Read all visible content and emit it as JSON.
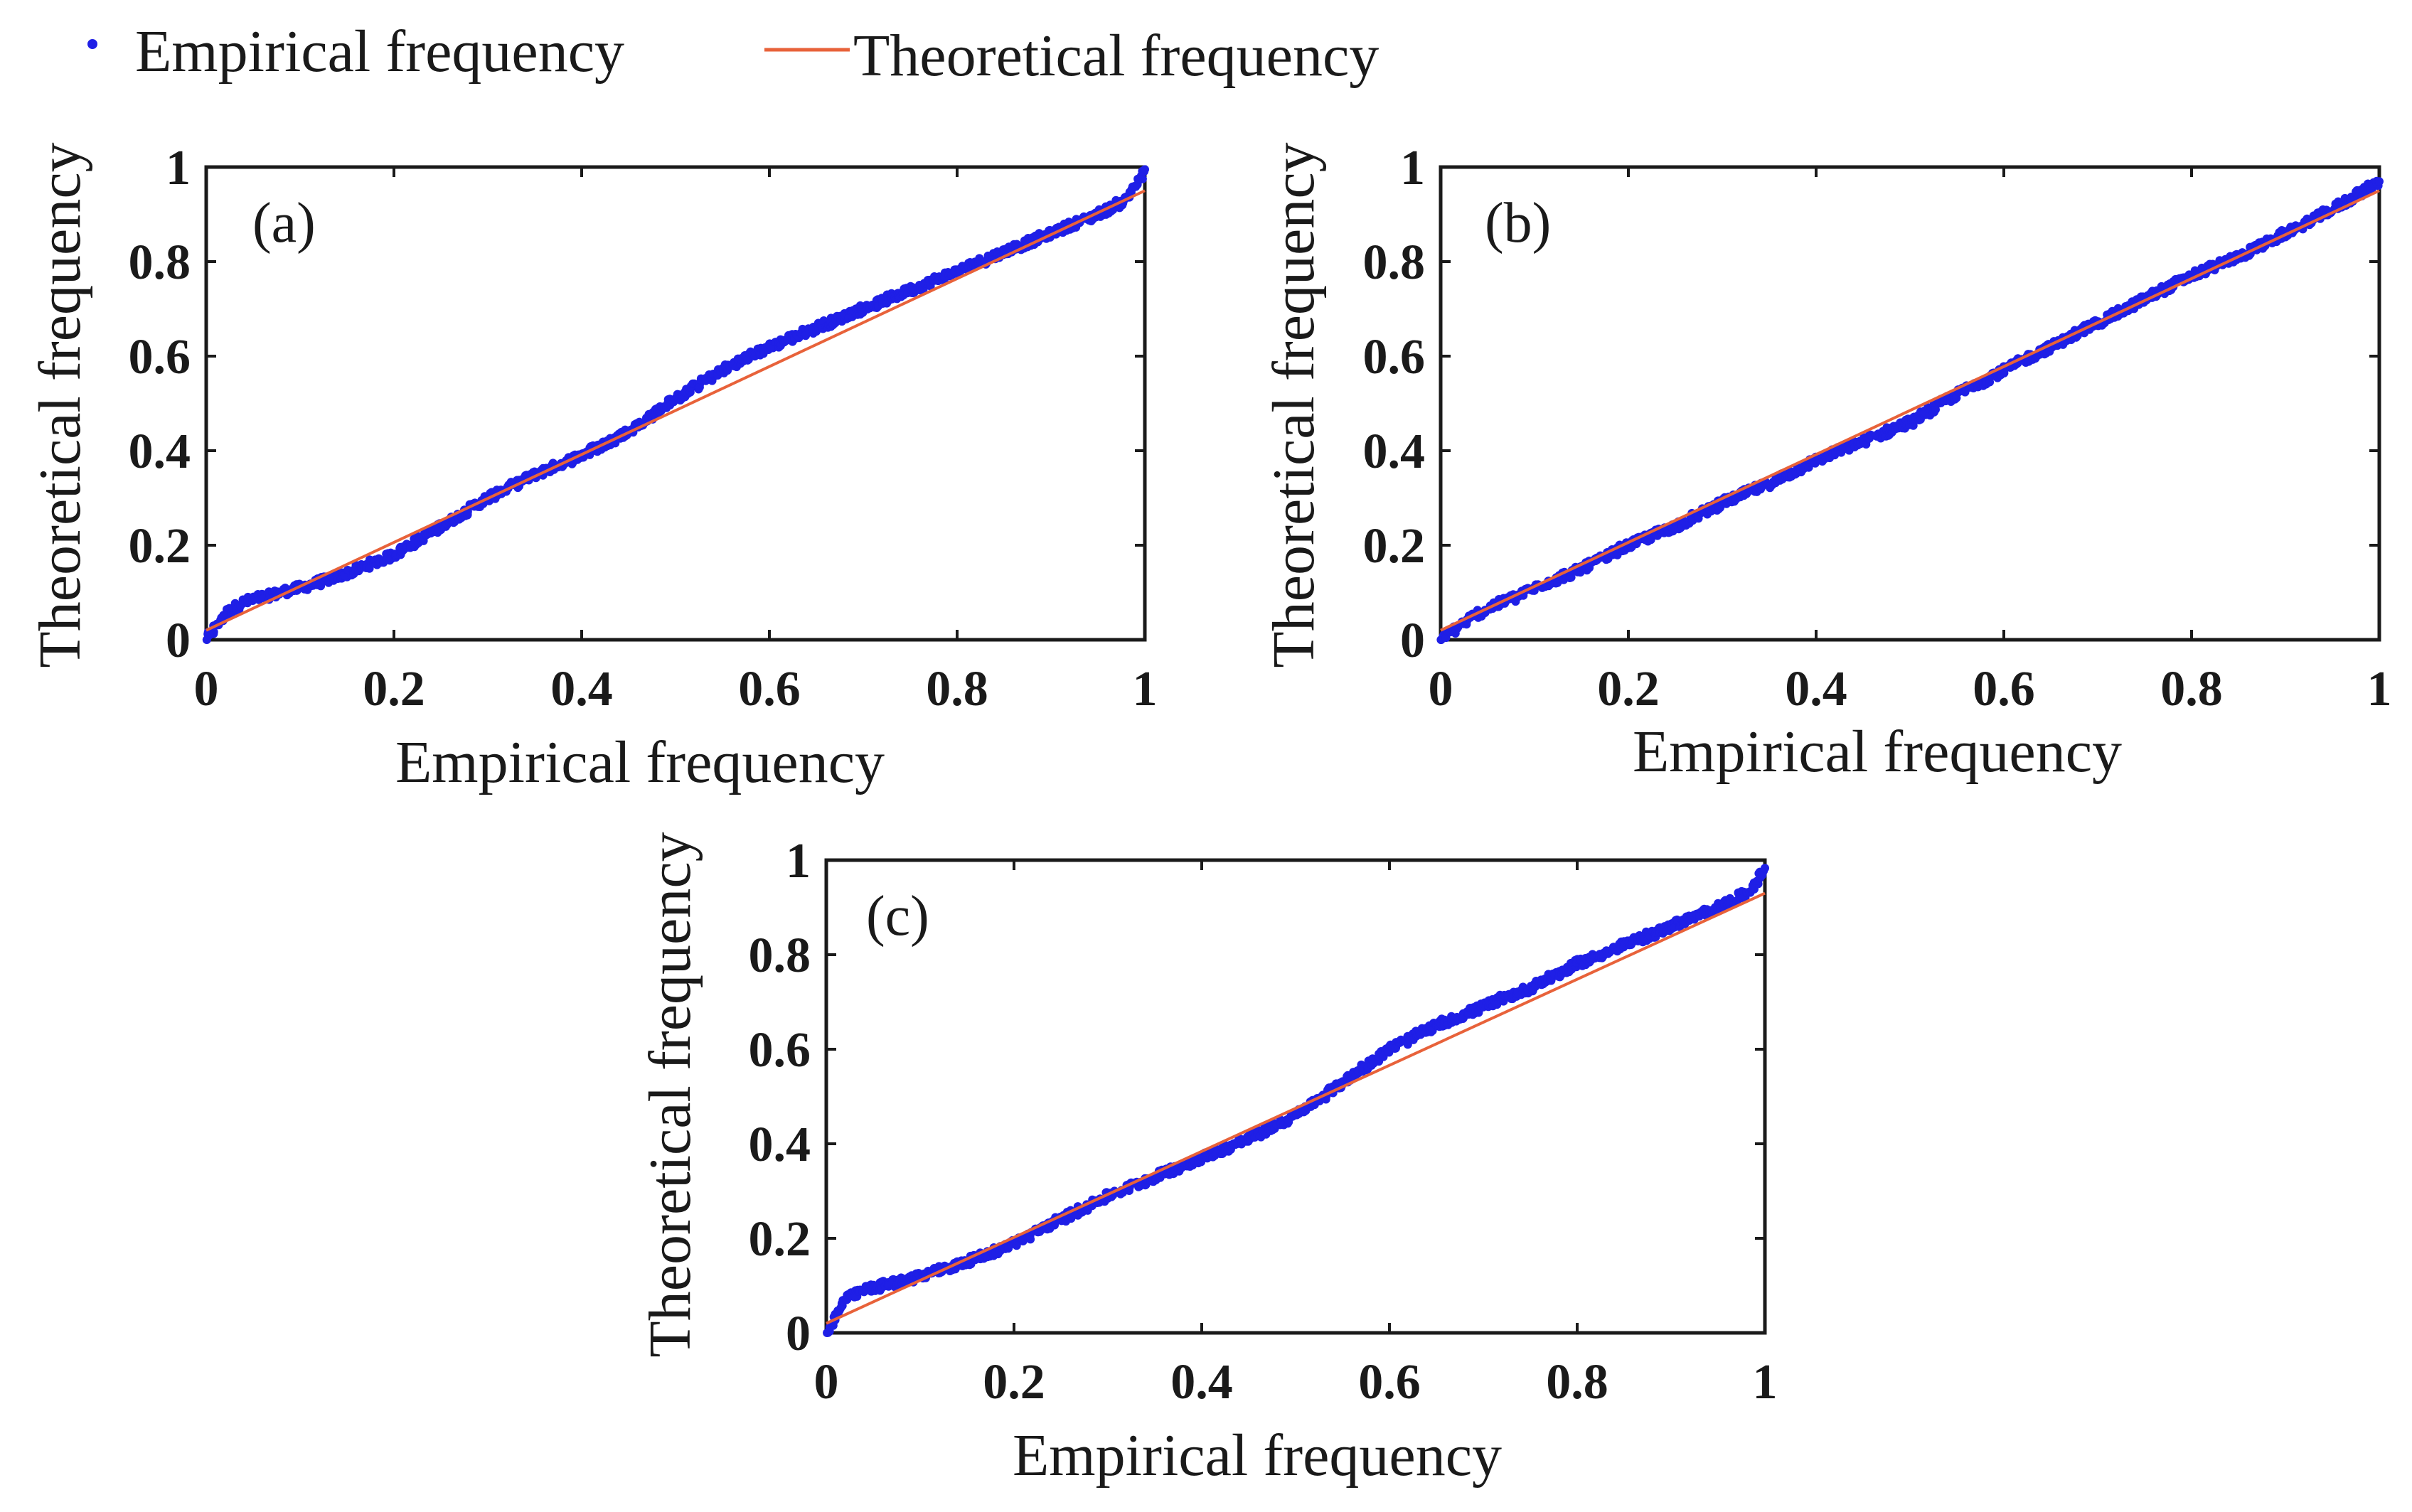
{
  "legend": {
    "items": [
      {
        "label": "Empirical frequency",
        "kind": "marker",
        "color": "#1f1fe6"
      },
      {
        "label": "Theoretical frequency",
        "kind": "line",
        "color": "#e8623a"
      }
    ]
  },
  "colors": {
    "scatter": "#1f1fe6",
    "fit_line": "#e8623a",
    "axis": "#1a1a1a"
  },
  "chart_data": [
    {
      "type": "scatter",
      "panel_label": "(a)",
      "xlabel": "Empirical frequency",
      "ylabel": "Theoretical frequency",
      "xlim": [
        0,
        1
      ],
      "ylim": [
        0,
        1
      ],
      "xticks": [
        "0",
        "0.2",
        "0.4",
        "0.6",
        "0.8",
        "1"
      ],
      "yticks": [
        "0",
        "0.2",
        "0.4",
        "0.6",
        "0.8",
        "1"
      ],
      "series": [
        {
          "name": "Empirical frequency",
          "x": [
            0,
            0.02,
            0.04,
            0.06,
            0.08,
            0.1,
            0.15,
            0.2,
            0.25,
            0.3,
            0.35,
            0.4,
            0.45,
            0.5,
            0.55,
            0.6,
            0.65,
            0.7,
            0.75,
            0.8,
            0.85,
            0.9,
            0.95,
            0.98,
            1.0
          ],
          "y": [
            0.0,
            0.055,
            0.08,
            0.09,
            0.1,
            0.11,
            0.14,
            0.18,
            0.24,
            0.3,
            0.35,
            0.39,
            0.44,
            0.51,
            0.57,
            0.62,
            0.66,
            0.7,
            0.74,
            0.78,
            0.82,
            0.86,
            0.9,
            0.93,
            0.99
          ]
        },
        {
          "name": "Theoretical frequency",
          "x": [
            0,
            1
          ],
          "y": [
            0.02,
            0.95
          ]
        }
      ]
    },
    {
      "type": "scatter",
      "panel_label": "(b)",
      "xlabel": "Empirical frequency",
      "ylabel": "Theoretical frequency",
      "xlim": [
        0,
        1
      ],
      "ylim": [
        0,
        1
      ],
      "xticks": [
        "0",
        "0.2",
        "0.4",
        "0.6",
        "0.8",
        "1"
      ],
      "yticks": [
        "0",
        "0.2",
        "0.4",
        "0.6",
        "0.8",
        "1"
      ],
      "series": [
        {
          "name": "Empirical frequency",
          "x": [
            0,
            0.02,
            0.04,
            0.06,
            0.08,
            0.1,
            0.15,
            0.2,
            0.25,
            0.3,
            0.35,
            0.4,
            0.45,
            0.5,
            0.55,
            0.6,
            0.65,
            0.7,
            0.75,
            0.8,
            0.85,
            0.9,
            0.95,
            1.0
          ],
          "y": [
            0.0,
            0.03,
            0.055,
            0.075,
            0.09,
            0.11,
            0.15,
            0.2,
            0.24,
            0.29,
            0.33,
            0.38,
            0.42,
            0.46,
            0.52,
            0.57,
            0.62,
            0.67,
            0.72,
            0.77,
            0.81,
            0.86,
            0.91,
            0.97
          ]
        },
        {
          "name": "Theoretical frequency",
          "x": [
            0,
            1
          ],
          "y": [
            0.02,
            0.95
          ]
        }
      ]
    },
    {
      "type": "scatter",
      "panel_label": "(c)",
      "xlabel": "Empirical frequency",
      "ylabel": "Theoretical frequency",
      "xlim": [
        0,
        1
      ],
      "ylim": [
        0,
        1
      ],
      "xticks": [
        "0",
        "0.2",
        "0.4",
        "0.6",
        "0.8",
        "1"
      ],
      "yticks": [
        "0",
        "0.2",
        "0.4",
        "0.6",
        "0.8",
        "1"
      ],
      "series": [
        {
          "name": "Empirical frequency",
          "x": [
            0,
            0.02,
            0.04,
            0.06,
            0.08,
            0.1,
            0.15,
            0.2,
            0.25,
            0.3,
            0.35,
            0.4,
            0.45,
            0.5,
            0.55,
            0.6,
            0.65,
            0.7,
            0.75,
            0.8,
            0.85,
            0.9,
            0.95,
            0.98,
            1.0
          ],
          "y": [
            0.0,
            0.07,
            0.09,
            0.1,
            0.11,
            0.12,
            0.15,
            0.19,
            0.24,
            0.29,
            0.33,
            0.37,
            0.41,
            0.46,
            0.53,
            0.6,
            0.65,
            0.69,
            0.73,
            0.78,
            0.82,
            0.86,
            0.9,
            0.93,
            0.98
          ]
        },
        {
          "name": "Theoretical frequency",
          "x": [
            0,
            1
          ],
          "y": [
            0.02,
            0.93
          ]
        }
      ]
    }
  ]
}
